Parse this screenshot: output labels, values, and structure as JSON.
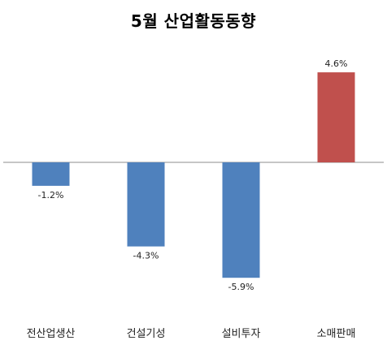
{
  "chart_data": {
    "type": "bar",
    "title": "5월 산업활동동향",
    "categories": [
      "전산업생산",
      "건설기성",
      "설비투자",
      "소매판매"
    ],
    "values": [
      -1.2,
      -4.3,
      -5.9,
      4.6
    ],
    "data_labels": [
      "-1.2%",
      "-4.3%",
      "-5.9%",
      "4.6%"
    ],
    "colors": [
      "#4f81bd",
      "#4f81bd",
      "#4f81bd",
      "#c0504d"
    ],
    "ylim": [
      -7.2,
      4.6
    ],
    "grid": false,
    "legend": "none"
  }
}
